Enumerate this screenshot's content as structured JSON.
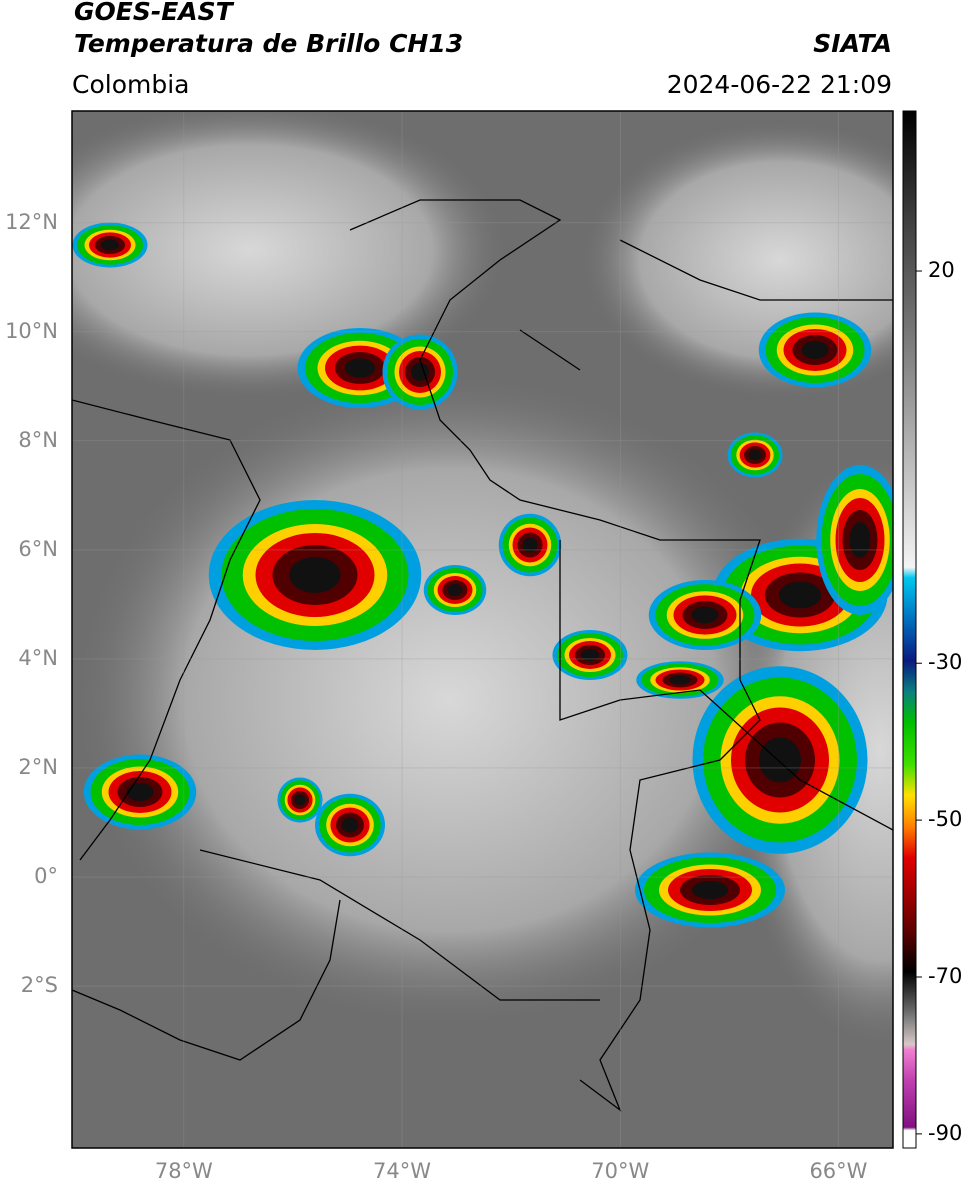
{
  "header": {
    "title_line1": "GOES-EAST",
    "title_line2": "Temperatura de Brillo CH13",
    "region": "Colombia",
    "source": "SIATA",
    "timestamp": "2024-06-22 21:09"
  },
  "map": {
    "xlim": [
      -80.05,
      -65
    ],
    "ylim": [
      -4.97,
      14.05
    ],
    "xticks": [
      {
        "value": -78,
        "label": "78°W"
      },
      {
        "value": -74,
        "label": "74°W"
      },
      {
        "value": -70,
        "label": "70°W"
      },
      {
        "value": -66,
        "label": "66°W"
      }
    ],
    "yticks": [
      {
        "value": 12,
        "label": "12°N"
      },
      {
        "value": 10,
        "label": "10°N"
      },
      {
        "value": 8,
        "label": "8°N"
      },
      {
        "value": 6,
        "label": "6°N"
      },
      {
        "value": 4,
        "label": "4°N"
      },
      {
        "value": 2,
        "label": "2°N"
      },
      {
        "value": 0,
        "label": "0°"
      },
      {
        "value": -2,
        "label": "2°S"
      }
    ]
  },
  "colorbar": {
    "lim": [
      -91.8,
      40.4
    ],
    "ticks": [
      20,
      -30,
      -50,
      -70,
      -90
    ]
  }
}
